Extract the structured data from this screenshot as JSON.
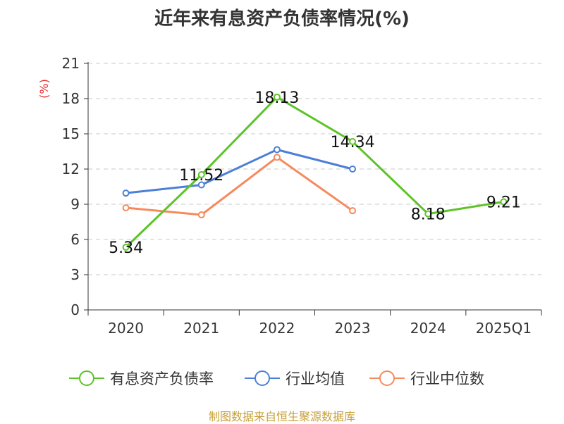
{
  "chart_data": {
    "type": "line",
    "title": "近年来有息资产负债率情况(%)",
    "ylabel": "(%)",
    "xlabel": "",
    "categories": [
      "2020",
      "2021",
      "2022",
      "2023",
      "2024",
      "2025Q1"
    ],
    "ylim": [
      0,
      21
    ],
    "yticks": [
      0,
      3,
      6,
      9,
      12,
      15,
      18,
      21
    ],
    "grid": true,
    "legend_position": "bottom",
    "series": [
      {
        "name": "有息资产负债率",
        "color": "#5cc428",
        "values": [
          5.34,
          11.52,
          18.13,
          14.34,
          8.18,
          9.21
        ],
        "data_labels": [
          "5.34",
          "11.52",
          "18.13",
          "14.34",
          "8.18",
          "9.21"
        ]
      },
      {
        "name": "行业均值",
        "color": "#4c7fd8",
        "values": [
          9.95,
          10.65,
          13.65,
          12.0,
          null,
          null
        ]
      },
      {
        "name": "行业中位数",
        "color": "#f68a5c",
        "values": [
          8.7,
          8.1,
          13.0,
          8.45,
          null,
          null
        ]
      }
    ]
  },
  "ylabel_color": "#e03030",
  "source": "制图数据来自恒生聚源数据库"
}
